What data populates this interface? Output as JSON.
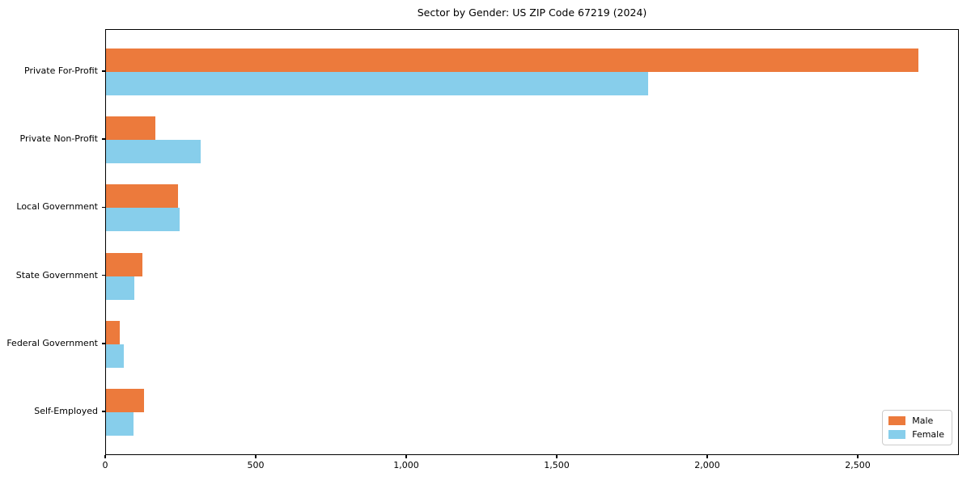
{
  "title": "Sector by Gender: US ZIP Code 67219 (2024)",
  "chart_data": {
    "type": "bar",
    "orientation": "horizontal",
    "title": "Sector by Gender: US ZIP Code 67219 (2024)",
    "xlabel": "",
    "ylabel": "",
    "categories": [
      "Private For-Profit",
      "Private Non-Profit",
      "Local Government",
      "State Government",
      "Federal Government",
      "Self-Employed"
    ],
    "series": [
      {
        "name": "Male",
        "color": "#EC7A3C",
        "values": [
          2700,
          165,
          240,
          120,
          45,
          125
        ]
      },
      {
        "name": "Female",
        "color": "#87CEEB",
        "values": [
          1800,
          315,
          245,
          95,
          60,
          90
        ]
      }
    ],
    "xlim": [
      0,
      2836
    ],
    "x_ticks": [
      0,
      500,
      1000,
      1500,
      2000,
      2500
    ],
    "x_tick_labels": [
      "0",
      "500",
      "1,000",
      "1,500",
      "2,000",
      "2,500"
    ],
    "grid": false,
    "legend_position": "lower right",
    "spine_color": "#000000",
    "background_color": "#ffffff"
  }
}
